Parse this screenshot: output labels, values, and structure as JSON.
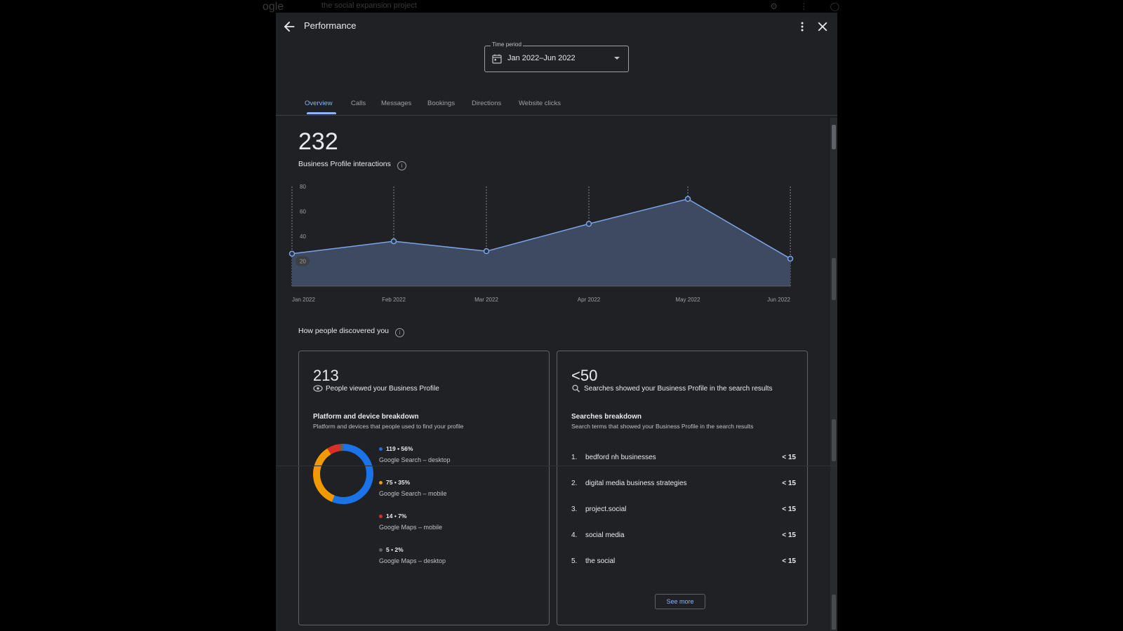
{
  "background": {
    "logo": "ogle",
    "query": "the social expansion project"
  },
  "header": {
    "title": "Performance",
    "icons": [
      "back-arrow-icon",
      "more-vert-icon",
      "close-icon"
    ]
  },
  "time_period": {
    "label": "Time period",
    "value": "Jan 2022–Jun 2022"
  },
  "tabs": [
    {
      "label": "Overview",
      "active": true
    },
    {
      "label": "Calls",
      "active": false
    },
    {
      "label": "Messages",
      "active": false
    },
    {
      "label": "Bookings",
      "active": false
    },
    {
      "label": "Directions",
      "active": false
    },
    {
      "label": "Website clicks",
      "active": false
    }
  ],
  "overview": {
    "total": "232",
    "label": "Business Profile interactions"
  },
  "chart_data": {
    "type": "area",
    "categories": [
      "Jan 2022",
      "Feb 2022",
      "Mar 2022",
      "Apr 2022",
      "May 2022",
      "Jun 2022"
    ],
    "series": [
      {
        "values": [
          26,
          36,
          28,
          50,
          70,
          22
        ]
      }
    ],
    "y_ticks": [
      "80",
      "60",
      "40",
      "20"
    ],
    "ylim": [
      0,
      80
    ],
    "grid": "vertical-dashed",
    "colors": {
      "line": "#7ba4e8",
      "fill": "#3e4a61"
    }
  },
  "discovery": {
    "title": "How people discovered you"
  },
  "views_card": {
    "number": "213",
    "subtitle": "People viewed your Business Profile",
    "heading": "Platform and device breakdown",
    "description": "Platform and devices that people used to find your profile",
    "breakdown": [
      {
        "value": "119 • 56%",
        "name": "Google Search – desktop",
        "color": "#1a73e8",
        "share": 56
      },
      {
        "value": "75 • 35%",
        "name": "Google Search – mobile",
        "color": "#f29900",
        "share": 35
      },
      {
        "value": "14 • 7%",
        "name": "Google Maps – mobile",
        "color": "#d93025",
        "share": 7
      },
      {
        "value": "5 • 2%",
        "name": "Google Maps – desktop",
        "color": "#5f6368",
        "share": 2
      }
    ]
  },
  "searches_card": {
    "number": "<50",
    "subtitle": "Searches showed your Business Profile in the search results",
    "heading": "Searches breakdown",
    "description": "Search terms that showed your Business Profile in the search results",
    "terms": [
      {
        "rank": "1.",
        "term": "bedford nh businesses",
        "count": "< 15"
      },
      {
        "rank": "2.",
        "term": "digital media business strategies",
        "count": "< 15"
      },
      {
        "rank": "3.",
        "term": "project.social",
        "count": "< 15"
      },
      {
        "rank": "4.",
        "term": "social media",
        "count": "< 15"
      },
      {
        "rank": "5.",
        "term": "the social",
        "count": "< 15"
      }
    ],
    "see_more": "See more"
  }
}
